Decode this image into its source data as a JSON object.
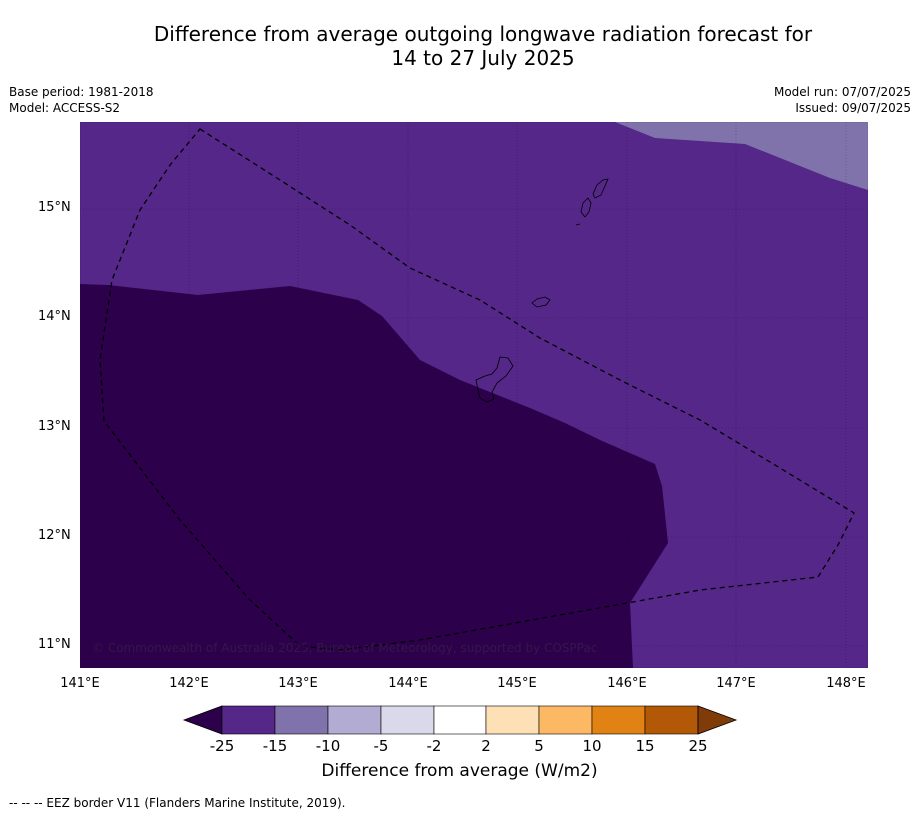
{
  "title": {
    "line1": "Difference from average outgoing longwave radiation forecast for",
    "line2": "14 to 27 July 2025"
  },
  "meta": {
    "base_period": "Base period: 1981-2018",
    "model": "Model: ACCESS-S2",
    "model_run": "Model run: 07/07/2025",
    "issued": "Issued: 09/07/2025"
  },
  "map": {
    "lat_labels": [
      "15°N",
      "14°N",
      "13°N",
      "12°N",
      "11°N"
    ],
    "lon_labels": [
      "141°E",
      "142°E",
      "143°E",
      "144°E",
      "145°E",
      "146°E",
      "147°E",
      "148°E"
    ],
    "copyright": "© Commonwealth of Australia 2025, Bureau of Meteorology, supported by COSPPac",
    "regions": [
      {
        "name": "lowest-band",
        "range": "below -25",
        "color": "#2d004b"
      },
      {
        "name": "mid-band",
        "range": "-25 to -15",
        "color": "#542788"
      },
      {
        "name": "upper-band",
        "range": "-15 to -10",
        "color": "#8073ac"
      }
    ]
  },
  "colorbar": {
    "label": "Difference from average (W/m2)",
    "ticks": [
      "-25",
      "-15",
      "-10",
      "-5",
      "-2",
      "2",
      "5",
      "10",
      "15",
      "25"
    ],
    "colors": [
      "#2d004b",
      "#542788",
      "#8073ac",
      "#b2abd2",
      "#d8daeb",
      "#ffffff",
      "#fee0b6",
      "#fdb863",
      "#e08214",
      "#b35806",
      "#7f3b08"
    ]
  },
  "footnote": "-- -- -- EEZ border V11 (Flanders Marine Institute, 2019)."
}
